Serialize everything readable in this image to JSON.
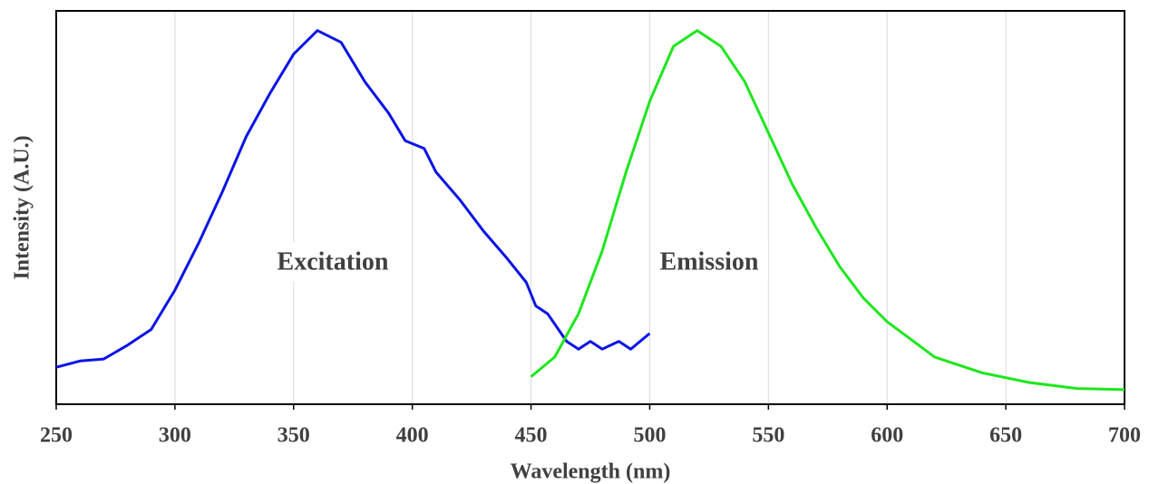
{
  "chart_data": {
    "type": "line",
    "xlabel": "Wavelength (nm)",
    "ylabel": "Intensity (A.U.)",
    "annotations": [
      "Excitation",
      "Emission"
    ],
    "xlim": [
      250,
      700
    ],
    "xticks": [
      250,
      300,
      350,
      400,
      450,
      500,
      550,
      600,
      650,
      700
    ],
    "ylim": [
      0,
      1
    ],
    "grid": true,
    "series": [
      {
        "name": "Excitation",
        "color": "#0a14e6",
        "x": [
          250,
          260,
          270,
          280,
          290,
          300,
          310,
          320,
          330,
          340,
          350,
          360,
          370,
          380,
          390,
          397,
          405,
          410,
          420,
          430,
          440,
          448,
          452,
          457,
          465,
          470,
          475,
          480,
          487,
          492,
          500
        ],
        "values": [
          0.094,
          0.11,
          0.115,
          0.15,
          0.19,
          0.29,
          0.41,
          0.54,
          0.68,
          0.79,
          0.89,
          0.95,
          0.92,
          0.82,
          0.74,
          0.67,
          0.65,
          0.59,
          0.52,
          0.44,
          0.37,
          0.31,
          0.25,
          0.23,
          0.16,
          0.14,
          0.16,
          0.14,
          0.16,
          0.14,
          0.18
        ]
      },
      {
        "name": "Emission",
        "color": "#1ee61e",
        "x": [
          450,
          460,
          470,
          480,
          490,
          500,
          510,
          520,
          530,
          540,
          550,
          560,
          570,
          580,
          590,
          600,
          620,
          640,
          660,
          680,
          700
        ],
        "values": [
          0.07,
          0.12,
          0.23,
          0.39,
          0.59,
          0.77,
          0.91,
          0.95,
          0.91,
          0.82,
          0.69,
          0.56,
          0.45,
          0.35,
          0.27,
          0.21,
          0.12,
          0.08,
          0.055,
          0.04,
          0.037
        ]
      }
    ]
  }
}
